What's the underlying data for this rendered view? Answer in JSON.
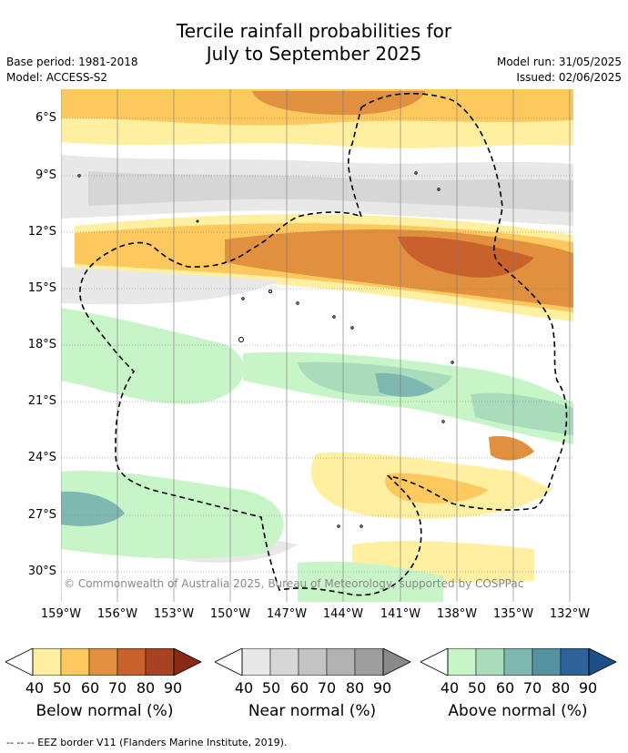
{
  "title_line1": "Tercile rainfall probabilities for",
  "title_line2": "July to September 2025",
  "base_period": "Base period: 1981-2018",
  "model": "Model: ACCESS-S2",
  "model_run": "Model run: 31/05/2025",
  "issued": "Issued: 02/06/2025",
  "copyright": "© Commonwealth of Australia 2025, Bureau of Meteorology, supported by COSPPac",
  "footer": "-- -- -- EEZ border V11 (Flanders Marine Institute, 2019).",
  "lat_labels": [
    "6°S",
    "9°S",
    "12°S",
    "15°S",
    "18°S",
    "21°S",
    "24°S",
    "27°S",
    "30°S"
  ],
  "lon_labels": [
    "159°W",
    "156°W",
    "153°W",
    "150°W",
    "147°W",
    "144°W",
    "141°W",
    "138°W",
    "135°W",
    "132°W"
  ],
  "colorbars": [
    {
      "label": "Below normal (%)",
      "ticks": [
        "40",
        "50",
        "60",
        "70",
        "80",
        "90"
      ],
      "colors": [
        "#ffefa0",
        "#fdc95f",
        "#e0903e",
        "#c8612c",
        "#a84321",
        "#8a2a15"
      ]
    },
    {
      "label": "Near normal (%)",
      "ticks": [
        "40",
        "50",
        "60",
        "70",
        "80",
        "90"
      ],
      "colors": [
        "#e8e8e8",
        "#d6d6d6",
        "#c4c4c4",
        "#b2b2b2",
        "#9e9e9e",
        "#8a8a8a"
      ]
    },
    {
      "label": "Above normal (%)",
      "ticks": [
        "40",
        "50",
        "60",
        "70",
        "80",
        "90"
      ],
      "colors": [
        "#c8f5c8",
        "#a8dcba",
        "#7eb8b0",
        "#5592a0",
        "#30629a",
        "#1c4f86"
      ]
    }
  ]
}
